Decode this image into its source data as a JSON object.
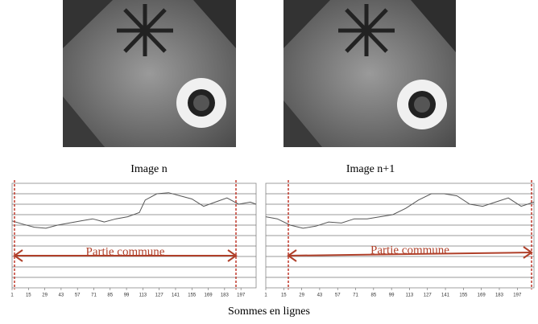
{
  "figure": {
    "image_captions": [
      "Image n",
      "Image n+1"
    ],
    "caption": "Sommes en lignes"
  },
  "chart_data": [
    {
      "type": "line",
      "annotation": "Partie commune",
      "color": "#555555",
      "grid": true,
      "x": [
        1,
        10,
        20,
        30,
        40,
        50,
        60,
        70,
        80,
        90,
        100,
        110,
        115,
        125,
        135,
        145,
        155,
        165,
        175,
        185,
        195,
        205,
        210
      ],
      "values": [
        64,
        61,
        58,
        57,
        60,
        62,
        64,
        66,
        63,
        66,
        68,
        72,
        84,
        90,
        91,
        88,
        85,
        78,
        82,
        86,
        80,
        82,
        80
      ],
      "xlim": [
        1,
        210
      ],
      "ylim": [
        0,
        100
      ],
      "xticks": [
        1,
        15,
        29,
        43,
        57,
        71,
        85,
        99,
        113,
        127,
        141,
        155,
        169,
        183,
        197
      ]
    },
    {
      "type": "line",
      "annotation": "Partie commune",
      "color": "#555555",
      "grid": true,
      "x": [
        1,
        10,
        20,
        30,
        40,
        50,
        60,
        70,
        80,
        90,
        100,
        110,
        120,
        130,
        140,
        150,
        160,
        170,
        180,
        190,
        200,
        210
      ],
      "values": [
        68,
        66,
        60,
        57,
        59,
        63,
        62,
        66,
        66,
        68,
        70,
        76,
        84,
        90,
        90,
        88,
        80,
        78,
        82,
        86,
        78,
        82
      ],
      "xlim": [
        1,
        210
      ],
      "ylim": [
        0,
        100
      ],
      "xticks": [
        1,
        15,
        29,
        43,
        57,
        71,
        85,
        99,
        113,
        127,
        141,
        155,
        169,
        183,
        197
      ]
    }
  ]
}
